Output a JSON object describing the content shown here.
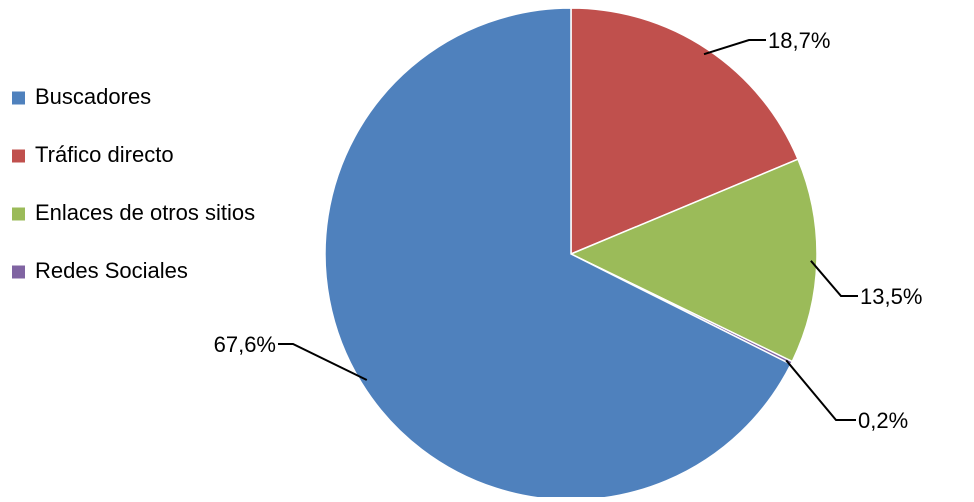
{
  "chart_data": {
    "type": "pie",
    "title": "",
    "legend_position": "left",
    "start_angle_deg_clockwise_from_top": 0,
    "direction": "clockwise",
    "slices": [
      {
        "label": "Tráfico directo",
        "value": 18.7,
        "value_label": "18,7%",
        "color": "#C0504D"
      },
      {
        "label": "Enlaces de otros sitios",
        "value": 13.5,
        "value_label": "13,5%",
        "color": "#9BBB59"
      },
      {
        "label": "Redes Sociales",
        "value": 0.2,
        "value_label": "0,2%",
        "color": "#8064A2"
      },
      {
        "label": "Buscadores",
        "value": 67.6,
        "value_label": "67,6%",
        "color": "#4F81BD"
      }
    ],
    "legend": [
      {
        "label": "Buscadores",
        "color": "#4F81BD"
      },
      {
        "label": "Tráfico directo",
        "color": "#C0504D"
      },
      {
        "label": "Enlaces de otros sitios",
        "color": "#9BBB59"
      },
      {
        "label": "Redes Sociales",
        "color": "#8064A2"
      }
    ]
  }
}
